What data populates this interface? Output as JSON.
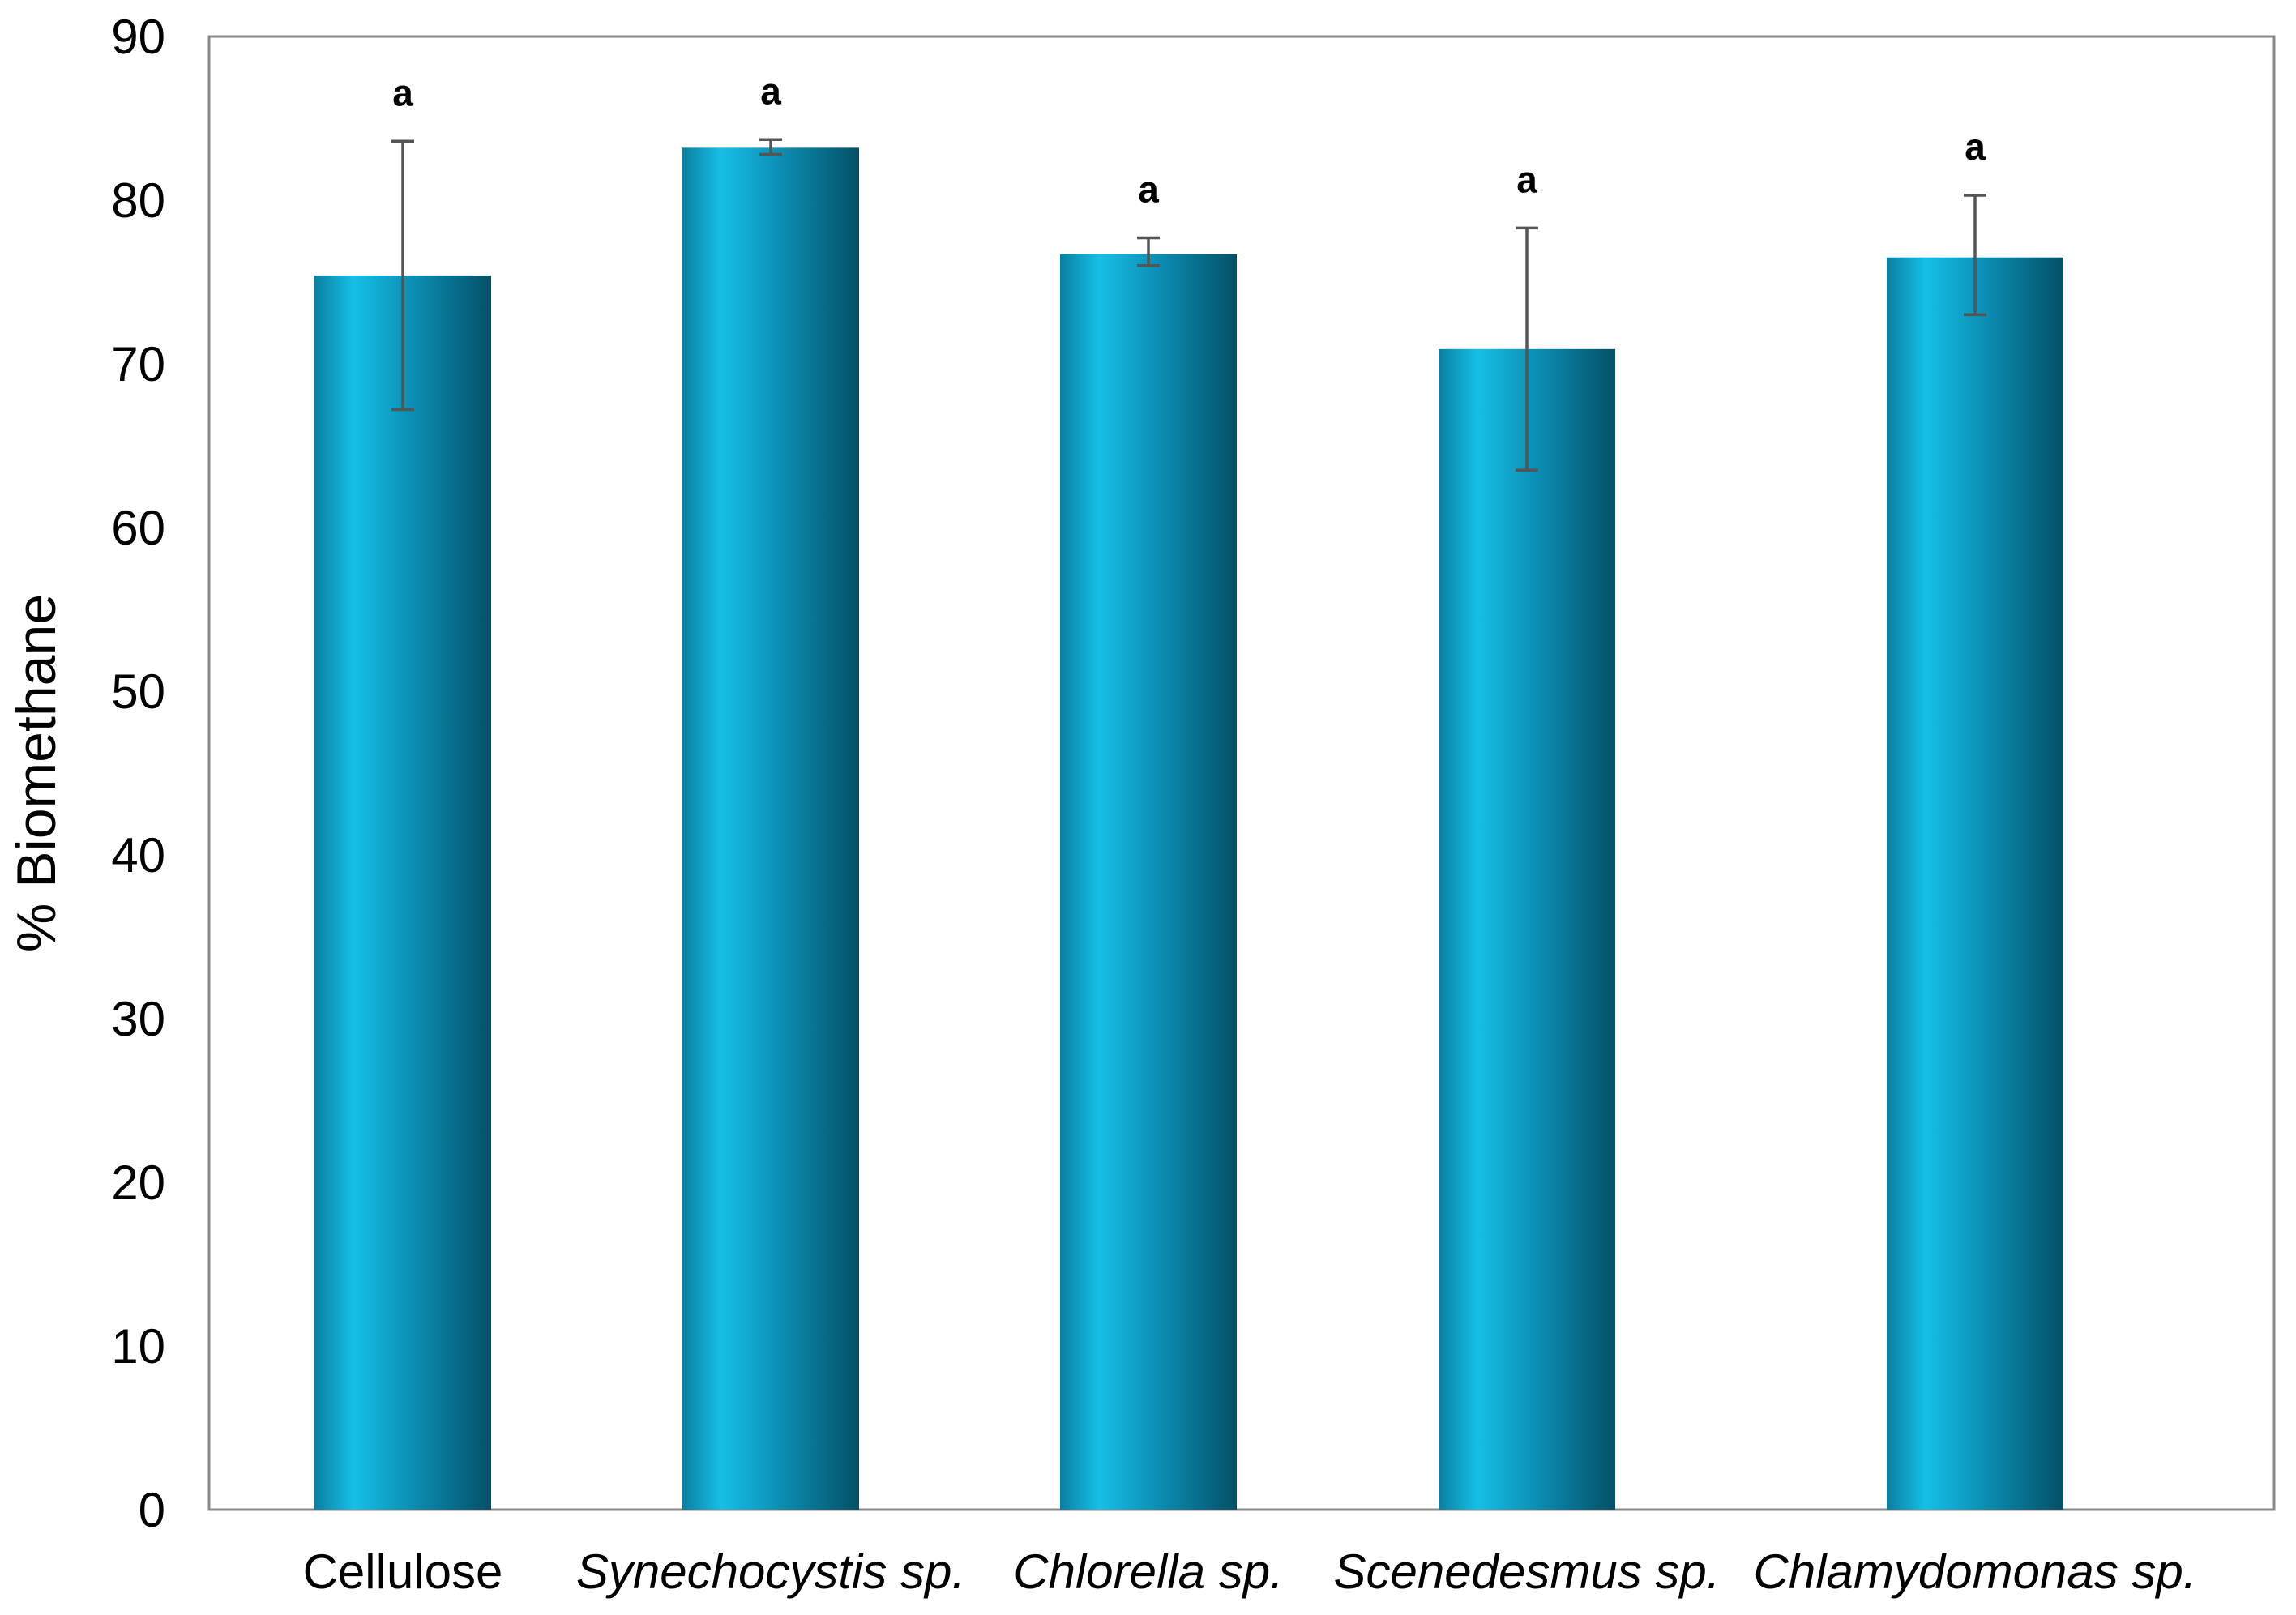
{
  "chart_data": {
    "type": "bar",
    "title": "",
    "xlabel": "",
    "ylabel": "% Biomethane",
    "ylim": [
      0,
      90
    ],
    "yticks": [
      0,
      10,
      20,
      30,
      40,
      50,
      60,
      70,
      80,
      90
    ],
    "grid": false,
    "legend": "none",
    "categories": [
      "Cellulose",
      "Synechocystis sp.",
      "Chlorella sp.",
      "Scenedesmus sp.",
      "Chlamydomonas sp."
    ],
    "category_italic": [
      false,
      true,
      true,
      true,
      true
    ],
    "series": [
      {
        "values": [
          75.4,
          83.2,
          76.7,
          70.9,
          76.5
        ],
        "error_low": [
          67.2,
          82.8,
          76.0,
          63.5,
          73.0
        ],
        "error_high": [
          83.6,
          83.7,
          77.7,
          78.3,
          80.3
        ],
        "labels": [
          "a",
          "a",
          "a",
          "a",
          "a"
        ]
      }
    ],
    "colors": {
      "bar_light": "#16bfe6",
      "bar_mid": "#0c8fb5",
      "bar_dark": "#045067",
      "error_bar": "#555555",
      "axis": "#888888"
    }
  }
}
